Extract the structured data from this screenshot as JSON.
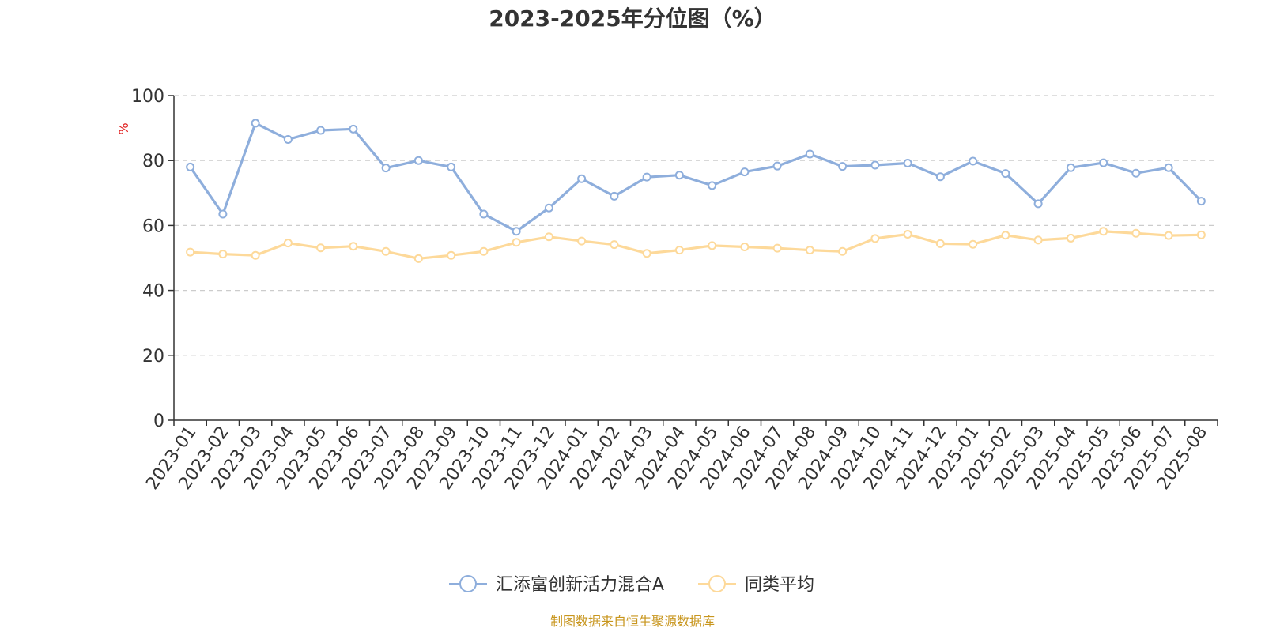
{
  "chart_data": {
    "type": "line",
    "title": "2023-2025年分位图（%）",
    "ylabel": "%",
    "xlabel": "",
    "ylim": [
      0,
      100
    ],
    "yticks": [
      0,
      20,
      40,
      60,
      80,
      100
    ],
    "grid": true,
    "legend_position": "bottom",
    "categories": [
      "2023-01",
      "2023-02",
      "2023-03",
      "2023-04",
      "2023-05",
      "2023-06",
      "2023-07",
      "2023-08",
      "2023-09",
      "2023-10",
      "2023-11",
      "2023-12",
      "2024-01",
      "2024-02",
      "2024-03",
      "2024-04",
      "2024-05",
      "2024-06",
      "2024-07",
      "2024-08",
      "2024-09",
      "2024-10",
      "2024-11",
      "2024-12",
      "2025-01",
      "2025-02",
      "2025-03",
      "2025-04",
      "2025-05",
      "2025-06",
      "2025-07",
      "2025-08"
    ],
    "series": [
      {
        "name": "汇添富创新活力混合A",
        "color": "#8eaedc",
        "values": [
          78,
          63.5,
          91.5,
          86.5,
          89.3,
          89.7,
          77.7,
          80,
          78,
          63.5,
          58.2,
          65.4,
          74.4,
          69,
          74.9,
          75.5,
          72.3,
          76.5,
          78.3,
          82,
          78.2,
          78.6,
          79.2,
          75,
          79.8,
          76,
          66.7,
          77.8,
          79.3,
          76.1,
          77.8,
          67.5
        ]
      },
      {
        "name": "同类平均",
        "color": "#fdd99a",
        "values": [
          51.8,
          51.2,
          50.8,
          54.6,
          53.1,
          53.6,
          52,
          49.8,
          50.8,
          52,
          54.8,
          56.5,
          55.2,
          54.1,
          51.4,
          52.4,
          53.8,
          53.4,
          53,
          52.4,
          52,
          56,
          57.3,
          54.4,
          54.2,
          57,
          55.5,
          56.1,
          58.2,
          57.6,
          56.9,
          57.1
        ]
      }
    ]
  },
  "source_text": "制图数据来自恒生聚源数据库"
}
